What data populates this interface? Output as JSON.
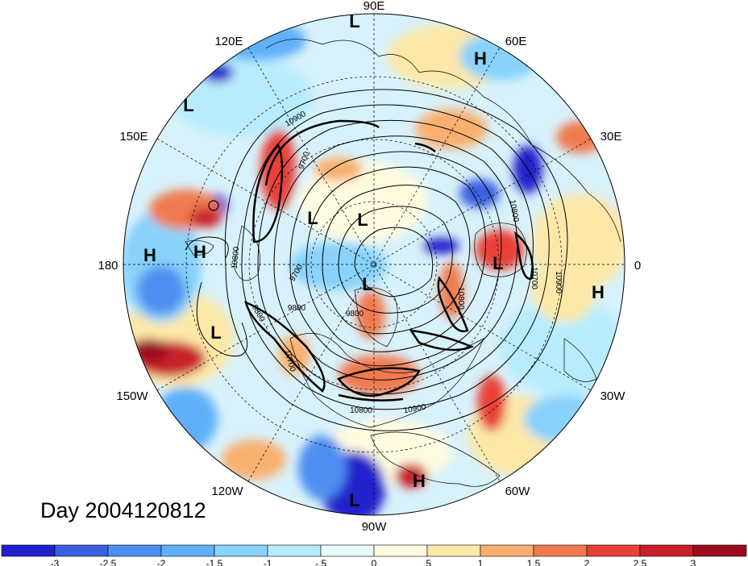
{
  "day_label": "Day 2004120812",
  "longitude_labels": {
    "lon_90E": "90E",
    "lon_120E": "120E",
    "lon_60E": "60E",
    "lon_150E": "150E",
    "lon_30E": "30E",
    "lon_180": "180",
    "lon_0": "0",
    "lon_150W": "150W",
    "lon_30W": "30W",
    "lon_120W": "120W",
    "lon_60W": "60W",
    "lon_90W": "90W"
  },
  "pressure_centers": [
    {
      "type": "L",
      "id": "low-top"
    },
    {
      "type": "H",
      "id": "high-60e"
    },
    {
      "type": "L",
      "id": "low-135e"
    },
    {
      "type": "H",
      "id": "high-180a"
    },
    {
      "type": "H",
      "id": "high-180b"
    },
    {
      "type": "L",
      "id": "low-siberia"
    },
    {
      "type": "L",
      "id": "low-pole"
    },
    {
      "type": "L",
      "id": "low-europe"
    },
    {
      "type": "H",
      "id": "high-atlantic"
    },
    {
      "type": "L",
      "id": "low-greenland"
    },
    {
      "type": "L",
      "id": "low-pacific"
    },
    {
      "type": "L",
      "id": "low-bottom"
    },
    {
      "type": "H",
      "id": "high-caribbean"
    }
  ],
  "contour_labels": [
    "10900",
    "9800",
    "9700",
    "9700",
    "9800",
    "9800",
    "10700",
    "10800",
    "10900",
    "10800",
    "10900",
    "10800",
    "10700",
    "10800"
  ],
  "colorbar": {
    "colors": [
      "#2020cc",
      "#3a5fe0",
      "#4d8ff0",
      "#5fb0f8",
      "#88d2fb",
      "#b8ecfd",
      "#e8fbfd",
      "#fffbe0",
      "#fde8a8",
      "#f8b070",
      "#f07a50",
      "#e84038",
      "#c8202a",
      "#9c0a20"
    ],
    "ticks": [
      "-3",
      "-2.5",
      "-2",
      "-1.5",
      "-1",
      "-.5",
      "0",
      ".5",
      "1",
      "1.5",
      "2",
      "2.5",
      "3"
    ]
  }
}
